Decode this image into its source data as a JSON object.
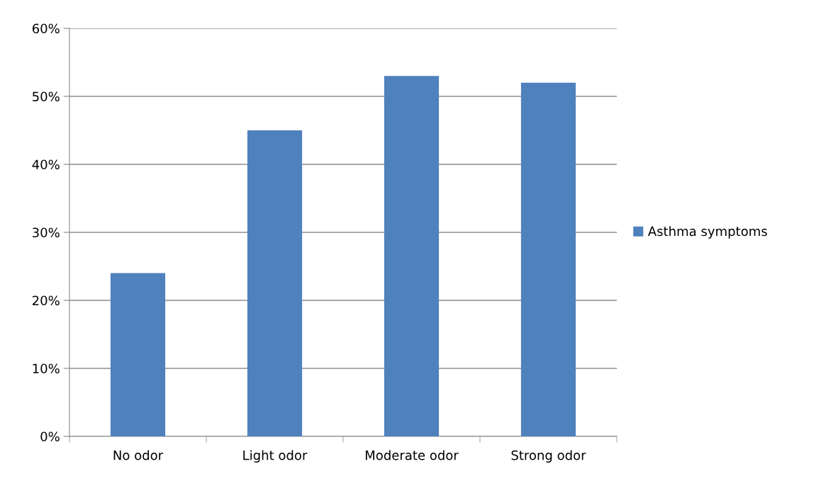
{
  "chart_data": {
    "type": "bar",
    "categories": [
      "No odor",
      "Light odor",
      "Moderate odor",
      "Strong odor"
    ],
    "series": [
      {
        "name": "Asthma symptoms",
        "color": "#4f81bd",
        "values": [
          24,
          45,
          53,
          52
        ]
      }
    ],
    "ylim": [
      0,
      60
    ],
    "yticks": [
      {
        "value": 0,
        "label": "0%"
      },
      {
        "value": 10,
        "label": "10%"
      },
      {
        "value": 20,
        "label": "20%"
      },
      {
        "value": 30,
        "label": "30%"
      },
      {
        "value": 40,
        "label": "40%"
      },
      {
        "value": 50,
        "label": "50%"
      },
      {
        "value": 60,
        "label": "60%"
      }
    ],
    "grid": "y",
    "legend": "right"
  }
}
